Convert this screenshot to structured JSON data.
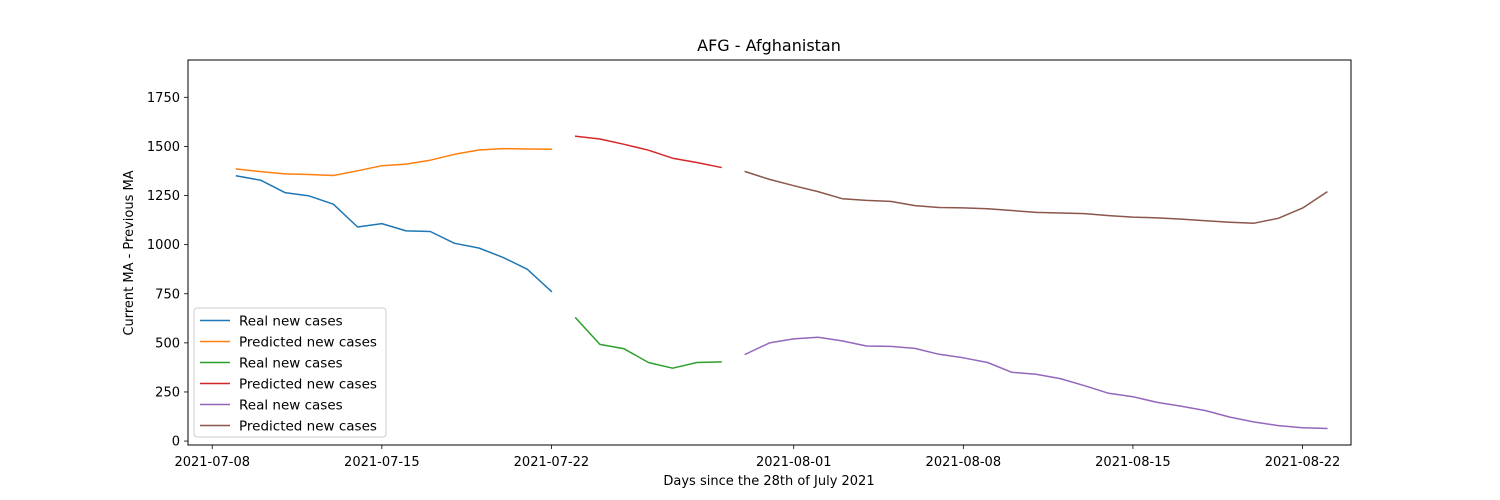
{
  "chart_data": {
    "type": "line",
    "title": "AFG - Afghanistan",
    "xlabel": "Days since the 28th of July 2021",
    "ylabel": "Current MA - Previous MA",
    "xlim": [
      "2021-07-07",
      "2021-08-24"
    ],
    "ylim": [
      -20,
      1940
    ],
    "x_ticks": [
      "2021-07-08",
      "2021-07-15",
      "2021-07-22",
      "2021-08-01",
      "2021-08-08",
      "2021-08-15",
      "2021-08-22"
    ],
    "y_ticks": [
      0,
      250,
      500,
      750,
      1000,
      1250,
      1500,
      1750
    ],
    "grid": false,
    "legend_position": "lower left",
    "series": [
      {
        "name": "Real new cases",
        "color": "#1f77b4",
        "x": [
          "2021-07-09",
          "2021-07-10",
          "2021-07-11",
          "2021-07-12",
          "2021-07-13",
          "2021-07-14",
          "2021-07-15",
          "2021-07-16",
          "2021-07-17",
          "2021-07-18",
          "2021-07-19",
          "2021-07-20",
          "2021-07-21",
          "2021-07-22"
        ],
        "y": [
          1350,
          1328,
          1265,
          1248,
          1206,
          1090,
          1107,
          1070,
          1067,
          1007,
          983,
          935,
          875,
          762
        ]
      },
      {
        "name": "Predicted new cases",
        "color": "#ff7f0e",
        "x": [
          "2021-07-09",
          "2021-07-10",
          "2021-07-11",
          "2021-07-12",
          "2021-07-13",
          "2021-07-14",
          "2021-07-15",
          "2021-07-16",
          "2021-07-17",
          "2021-07-18",
          "2021-07-19",
          "2021-07-20",
          "2021-07-21",
          "2021-07-22"
        ],
        "y": [
          1385,
          1372,
          1360,
          1357,
          1352,
          1376,
          1402,
          1410,
          1430,
          1460,
          1482,
          1489,
          1487,
          1486
        ]
      },
      {
        "name": "Real new cases",
        "color": "#2ca02c",
        "x": [
          "2021-07-23",
          "2021-07-24",
          "2021-07-25",
          "2021-07-26",
          "2021-07-27",
          "2021-07-28",
          "2021-07-29"
        ],
        "y": [
          627,
          492,
          470,
          400,
          371,
          400,
          403
        ]
      },
      {
        "name": "Predicted new cases",
        "color": "#d62728",
        "x": [
          "2021-07-23",
          "2021-07-24",
          "2021-07-25",
          "2021-07-26",
          "2021-07-27",
          "2021-07-28",
          "2021-07-29"
        ],
        "y": [
          1552,
          1538,
          1511,
          1481,
          1440,
          1418,
          1393
        ]
      },
      {
        "name": "Real new cases",
        "color": "#9467bd",
        "x": [
          "2021-07-30",
          "2021-07-31",
          "2021-08-01",
          "2021-08-02",
          "2021-08-03",
          "2021-08-04",
          "2021-08-05",
          "2021-08-06",
          "2021-08-07",
          "2021-08-08",
          "2021-08-09",
          "2021-08-10",
          "2021-08-11",
          "2021-08-12",
          "2021-08-13",
          "2021-08-14",
          "2021-08-15",
          "2021-08-16",
          "2021-08-17",
          "2021-08-18",
          "2021-08-19",
          "2021-08-20",
          "2021-08-21",
          "2021-08-22",
          "2021-08-23"
        ],
        "y": [
          442,
          500,
          520,
          529,
          510,
          484,
          482,
          472,
          442,
          424,
          400,
          350,
          340,
          318,
          282,
          243,
          226,
          197,
          177,
          155,
          122,
          97,
          79,
          68,
          64
        ]
      },
      {
        "name": "Predicted new cases",
        "color": "#8c564b",
        "x": [
          "2021-07-30",
          "2021-07-31",
          "2021-08-01",
          "2021-08-02",
          "2021-08-03",
          "2021-08-04",
          "2021-08-05",
          "2021-08-06",
          "2021-08-07",
          "2021-08-08",
          "2021-08-09",
          "2021-08-10",
          "2021-08-11",
          "2021-08-12",
          "2021-08-13",
          "2021-08-14",
          "2021-08-15",
          "2021-08-16",
          "2021-08-17",
          "2021-08-18",
          "2021-08-19",
          "2021-08-20",
          "2021-08-21",
          "2021-08-22",
          "2021-08-23"
        ],
        "y": [
          1372,
          1332,
          1300,
          1270,
          1234,
          1225,
          1220,
          1199,
          1189,
          1187,
          1183,
          1174,
          1164,
          1161,
          1158,
          1148,
          1140,
          1136,
          1130,
          1122,
          1114,
          1109,
          1134,
          1186,
          1268
        ]
      }
    ]
  }
}
